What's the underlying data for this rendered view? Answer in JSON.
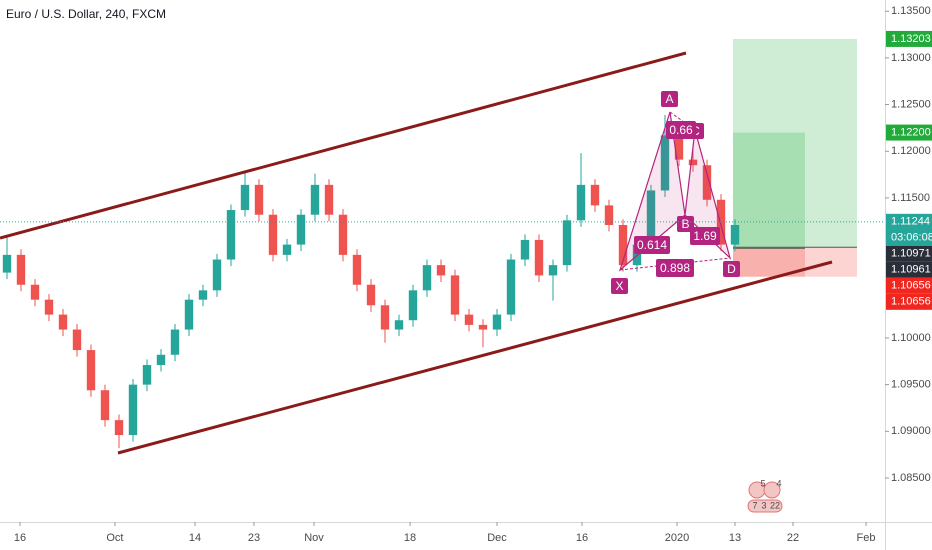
{
  "header": {
    "title": "Euro / U.S. Dollar, 240, FXCM"
  },
  "chart_data": {
    "type": "candlestick",
    "up_color": "#26a69a",
    "down_color": "#ef5350",
    "open": [
      1.107,
      1.1089,
      1.1057,
      1.1041,
      1.1025,
      1.1009,
      1.0987,
      1.0944,
      1.0912,
      1.0896,
      1.095,
      1.0971,
      1.0982,
      1.1009,
      1.1041,
      1.1051,
      1.1084,
      1.1137,
      1.1164,
      1.1132,
      1.1089,
      1.11,
      1.1132,
      1.1164,
      1.1132,
      1.1089,
      1.1057,
      1.1035,
      1.1009,
      1.1019,
      1.1051,
      1.1078,
      1.1067,
      1.1025,
      1.1014,
      1.1009,
      1.1025,
      1.1084,
      1.1105,
      1.1067,
      1.1078,
      1.1126,
      1.1164,
      1.1142,
      1.1121,
      1.1078,
      1.11,
      1.1158,
      1.1217,
      1.1191,
      1.1185,
      1.1148,
      1.11
    ],
    "high": [
      1.111,
      1.1095,
      1.1063,
      1.1047,
      1.1031,
      1.1015,
      1.0993,
      1.095,
      1.0918,
      1.0956,
      1.0977,
      1.0988,
      1.1015,
      1.1047,
      1.1057,
      1.109,
      1.1143,
      1.1178,
      1.117,
      1.1138,
      1.1106,
      1.1138,
      1.1176,
      1.117,
      1.1138,
      1.1095,
      1.1063,
      1.1041,
      1.1025,
      1.1057,
      1.1084,
      1.1084,
      1.1073,
      1.1031,
      1.102,
      1.1031,
      1.109,
      1.1111,
      1.1111,
      1.1084,
      1.1132,
      1.1198,
      1.117,
      1.1148,
      1.1127,
      1.1106,
      1.1164,
      1.1239,
      1.1223,
      1.1205,
      1.1191,
      1.1154,
      1.1127
    ],
    "low": [
      1.1063,
      1.105,
      1.1034,
      1.1018,
      1.1002,
      1.098,
      1.0937,
      1.0905,
      1.0882,
      1.0889,
      1.0943,
      1.0964,
      1.0975,
      1.1002,
      1.1034,
      1.1044,
      1.1077,
      1.113,
      1.1125,
      1.1082,
      1.1082,
      1.1093,
      1.1125,
      1.1125,
      1.1082,
      1.105,
      1.1028,
      1.0995,
      1.1002,
      1.1012,
      1.1044,
      1.106,
      1.1018,
      1.1007,
      1.099,
      1.1002,
      1.1018,
      1.1077,
      1.106,
      1.104,
      1.1071,
      1.1119,
      1.1135,
      1.1114,
      1.1071,
      1.1071,
      1.1093,
      1.1151,
      1.1184,
      1.1178,
      1.1141,
      1.1093,
      1.1093
    ],
    "close": [
      1.1089,
      1.1057,
      1.1041,
      1.1025,
      1.1009,
      1.0987,
      1.0944,
      1.0912,
      1.0896,
      1.095,
      1.0971,
      1.0982,
      1.1009,
      1.1041,
      1.1051,
      1.1084,
      1.1137,
      1.1164,
      1.1132,
      1.1089,
      1.11,
      1.1132,
      1.1164,
      1.1132,
      1.1089,
      1.1057,
      1.1035,
      1.1009,
      1.1019,
      1.1051,
      1.1078,
      1.1067,
      1.1025,
      1.1014,
      1.1009,
      1.1025,
      1.1084,
      1.1105,
      1.1067,
      1.1078,
      1.1126,
      1.1164,
      1.1142,
      1.1121,
      1.1078,
      1.11,
      1.1158,
      1.1217,
      1.1191,
      1.1185,
      1.1148,
      1.11,
      1.1121
    ],
    "xlim": [
      0,
      63
    ],
    "xticks": [
      {
        "value": 1.43,
        "label": "16"
      },
      {
        "value": 8.21,
        "label": "Oct"
      },
      {
        "value": 13.93,
        "label": "14"
      },
      {
        "value": 18.14,
        "label": "23"
      },
      {
        "value": 22.43,
        "label": "Nov"
      },
      {
        "value": 29.29,
        "label": "18"
      },
      {
        "value": 35.5,
        "label": "Dec"
      },
      {
        "value": 41.57,
        "label": "16"
      },
      {
        "value": 48.36,
        "label": "2020"
      },
      {
        "value": 52.5,
        "label": "13"
      },
      {
        "value": 56.64,
        "label": "22"
      },
      {
        "value": 61.86,
        "label": "Feb"
      }
    ],
    "ylim": [
      1.0805,
      1.1362
    ],
    "yticks": [
      {
        "value": 1.085,
        "label": "1.08500"
      },
      {
        "value": 1.09,
        "label": "1.09000"
      },
      {
        "value": 1.095,
        "label": "1.09500"
      },
      {
        "value": 1.1,
        "label": "1.10000"
      },
      {
        "value": 1.115,
        "label": "1.11500"
      },
      {
        "value": 1.12,
        "label": "1.12000"
      },
      {
        "value": 1.125,
        "label": "1.12500"
      },
      {
        "value": 1.13,
        "label": "1.13000"
      },
      {
        "value": 1.135,
        "label": "1.13500"
      }
    ],
    "last_price": {
      "value": 1.11244,
      "label": "1.11244"
    },
    "last_price_color": "#26a69a",
    "countdown": "03:06:08",
    "positions": [
      {
        "target": {
          "value": 1.13203,
          "label": "1.13203"
        },
        "entry": {
          "value": 1.10971,
          "label": "1.10971"
        },
        "stop": {
          "value": 1.10656,
          "label": "1.10656"
        }
      },
      {
        "target": {
          "value": 1.122,
          "label": "1.12200"
        },
        "entry": {
          "value": 1.10961,
          "label": "1.10961"
        },
        "stop": {
          "value": 1.10656,
          "label": "1.10656"
        }
      }
    ],
    "target_color": "#22ab3b",
    "entry_color": "#2a2e39",
    "stop_color": "#f0261f",
    "pattern": {
      "points": [
        "X",
        "A",
        "B",
        "C",
        "D"
      ],
      "ratios": [
        "0.614",
        "0.66",
        "1.69",
        "0.898"
      ]
    },
    "widget_counts": [
      "5",
      "4",
      "7",
      "3",
      "22"
    ]
  }
}
